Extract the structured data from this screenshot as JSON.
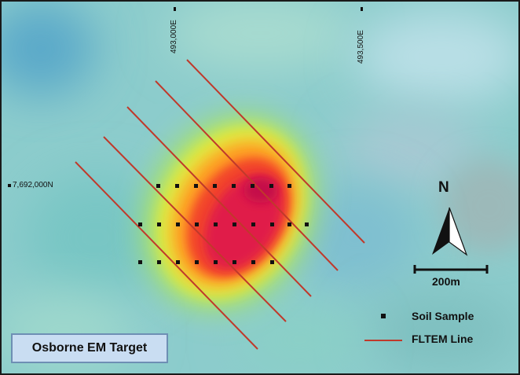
{
  "map": {
    "title": "Osborne EM Target",
    "easting_labels": [
      "493,000E",
      "493,500E"
    ],
    "northing_label": "7,692,000N",
    "north_arrow_label": "N",
    "scale_bar_label": "200m",
    "legend": {
      "soil_sample_label": "Soil Sample",
      "fltem_line_label": "FLTEM Line"
    },
    "colors": {
      "fltem_line": "#c0392b",
      "soil_sample": "#111111",
      "anomaly_high": "#e01050",
      "anomaly_mid": "#ff7a1a",
      "anomaly_low": "#b8e62e",
      "background": "#8fcfcf"
    },
    "icons": [
      "north-arrow-icon",
      "soil-sample-icon",
      "fltem-line-icon"
    ]
  }
}
